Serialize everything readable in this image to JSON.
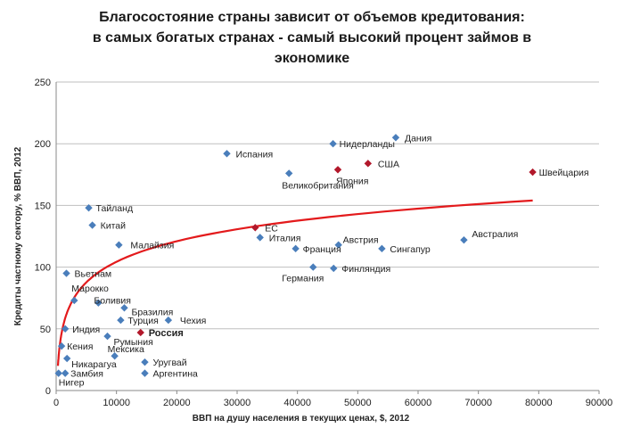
{
  "chart_data": {
    "type": "scatter",
    "title_lines": [
      "Благосостояние  страны зависит от объемов кредитования:",
      "в самых богатых странах - самый высокий процент займов в",
      "экономике"
    ],
    "xlabel": "ВВП на душу населения в текущих ценах, $, 2012",
    "ylabel": "Кредиты частному сектору, % ВВП, 2012",
    "xlim": [
      0,
      90000
    ],
    "ylim": [
      0,
      250
    ],
    "xticks": [
      "0",
      "10000",
      "20000",
      "30000",
      "40000",
      "50000",
      "60000",
      "70000",
      "80000",
      "90000"
    ],
    "yticks": [
      "0",
      "50",
      "100",
      "150",
      "200",
      "250"
    ],
    "grid": "horizontal",
    "colors": {
      "point": "#4a7ebb",
      "highlight": "#b2182b",
      "trend": "#e31a1c",
      "grid": "#bfbfbf",
      "highlight_label": "#c0001a"
    },
    "points": [
      {
        "label": "Нигер",
        "x": 400,
        "y": 14,
        "highlight": false
      },
      {
        "label": "Замбия",
        "x": 1500,
        "y": 14,
        "highlight": false
      },
      {
        "label": "Никарагуа",
        "x": 1800,
        "y": 26,
        "highlight": false
      },
      {
        "label": "Кения",
        "x": 900,
        "y": 36,
        "highlight": false
      },
      {
        "label": "Индия",
        "x": 1500,
        "y": 50,
        "highlight": false
      },
      {
        "label": "Марокко",
        "x": 3000,
        "y": 73,
        "highlight": false
      },
      {
        "label": "Вьетнам",
        "x": 1700,
        "y": 95,
        "highlight": false
      },
      {
        "label": "Боливия",
        "x": 7000,
        "y": 71,
        "highlight": false
      },
      {
        "label": "Бразилия",
        "x": 11300,
        "y": 67,
        "highlight": false
      },
      {
        "label": "Турция",
        "x": 10700,
        "y": 57,
        "highlight": false
      },
      {
        "label": "Чехия",
        "x": 18600,
        "y": 57,
        "highlight": false
      },
      {
        "label": "Россия",
        "x": 14000,
        "y": 47,
        "highlight": true
      },
      {
        "label": "Румыния",
        "x": 8500,
        "y": 44,
        "highlight": false
      },
      {
        "label": "Мексика",
        "x": 9700,
        "y": 28,
        "highlight": false
      },
      {
        "label": "Уругвай",
        "x": 14700,
        "y": 23,
        "highlight": false
      },
      {
        "label": "Аргентина",
        "x": 14700,
        "y": 14,
        "highlight": false
      },
      {
        "label": "Тайланд",
        "x": 5400,
        "y": 148,
        "highlight": false
      },
      {
        "label": "Китай",
        "x": 6000,
        "y": 134,
        "highlight": false
      },
      {
        "label": "Малайзия",
        "x": 10400,
        "y": 118,
        "highlight": false
      },
      {
        "label": "Испания",
        "x": 28300,
        "y": 192,
        "highlight": false
      },
      {
        "label": "Великобритания",
        "x": 38600,
        "y": 176,
        "highlight": false
      },
      {
        "label": "Нидерланды",
        "x": 45900,
        "y": 200,
        "highlight": false
      },
      {
        "label": "Дания",
        "x": 56300,
        "y": 205,
        "highlight": false
      },
      {
        "label": "Япония",
        "x": 46700,
        "y": 179,
        "highlight": true
      },
      {
        "label": "США",
        "x": 51700,
        "y": 184,
        "highlight": true
      },
      {
        "label": "Швейцария",
        "x": 79000,
        "y": 177,
        "highlight": true
      },
      {
        "label": "ЕС",
        "x": 33000,
        "y": 132,
        "highlight": true
      },
      {
        "label": "Италия",
        "x": 33800,
        "y": 124,
        "highlight": false
      },
      {
        "label": "Франция",
        "x": 39700,
        "y": 115,
        "highlight": false
      },
      {
        "label": "Австрия",
        "x": 46800,
        "y": 118,
        "highlight": false
      },
      {
        "label": "Сингапур",
        "x": 54000,
        "y": 115,
        "highlight": false
      },
      {
        "label": "Австралия",
        "x": 67600,
        "y": 122,
        "highlight": false
      },
      {
        "label": "Германия",
        "x": 42600,
        "y": 100,
        "highlight": false
      },
      {
        "label": "Финляндия",
        "x": 46000,
        "y": 99,
        "highlight": false
      }
    ],
    "trendline": {
      "type": "logarithmic",
      "x_range": [
        300,
        79000
      ],
      "y_at_start": 20,
      "y_at_end": 154
    }
  }
}
